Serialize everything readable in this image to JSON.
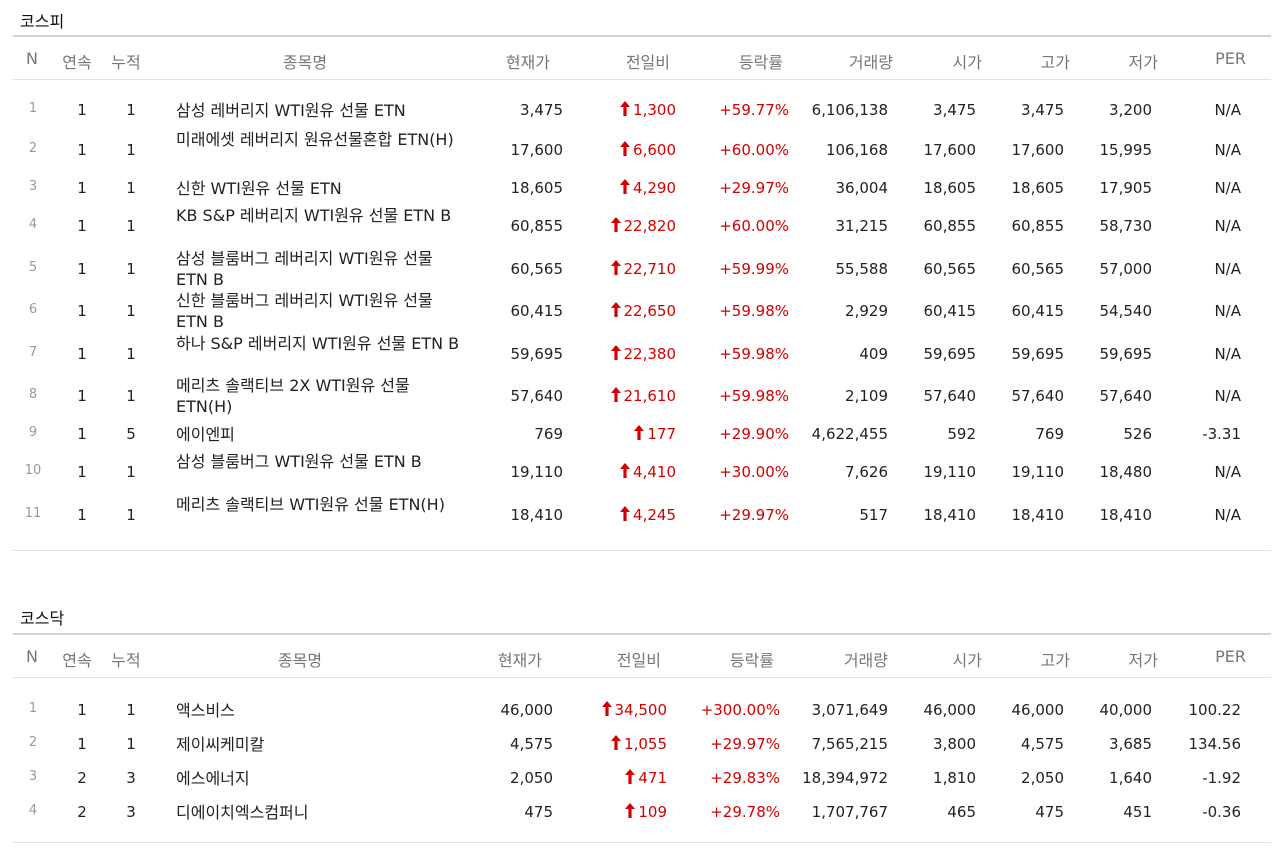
{
  "colors": {
    "up": "#d40000"
  },
  "icons": {
    "change": "red-up-arrow-icon"
  },
  "kospi": {
    "title": "코스피",
    "headers": [
      "N",
      "연속",
      "누적",
      "종목명",
      "현재가",
      "전일비",
      "등락률",
      "거래량",
      "시가",
      "고가",
      "저가",
      "PER"
    ],
    "rows": [
      {
        "n": "1",
        "streak": "1",
        "total": "1",
        "name": "삼성 레버리지 WTI원유 선물 ETN",
        "price": "3,475",
        "change": "1,300",
        "rate": "+59.77%",
        "volume": "6,106,138",
        "open": "3,475",
        "high": "3,475",
        "low": "3,200",
        "per": "N/A"
      },
      {
        "n": "2",
        "streak": "1",
        "total": "1",
        "name": "미래에셋 레버리지 원유선물혼합 ETN(H)",
        "price": "17,600",
        "change": "6,600",
        "rate": "+60.00%",
        "volume": "106,168",
        "open": "17,600",
        "high": "17,600",
        "low": "15,995",
        "per": "N/A"
      },
      {
        "n": "3",
        "streak": "1",
        "total": "1",
        "name": "신한 WTI원유 선물 ETN",
        "price": "18,605",
        "change": "4,290",
        "rate": "+29.97%",
        "volume": "36,004",
        "open": "18,605",
        "high": "18,605",
        "low": "17,905",
        "per": "N/A"
      },
      {
        "n": "4",
        "streak": "1",
        "total": "1",
        "name": "KB S&P 레버리지 WTI원유 선물 ETN B",
        "price": "60,855",
        "change": "22,820",
        "rate": "+60.00%",
        "volume": "31,215",
        "open": "60,855",
        "high": "60,855",
        "low": "58,730",
        "per": "N/A"
      },
      {
        "n": "5",
        "streak": "1",
        "total": "1",
        "name": "삼성 블룸버그 레버리지 WTI원유 선물 ETN B",
        "price": "60,565",
        "change": "22,710",
        "rate": "+59.99%",
        "volume": "55,588",
        "open": "60,565",
        "high": "60,565",
        "low": "57,000",
        "per": "N/A"
      },
      {
        "n": "6",
        "streak": "1",
        "total": "1",
        "name": "신한 블룸버그 레버리지 WTI원유 선물 ETN B",
        "price": "60,415",
        "change": "22,650",
        "rate": "+59.98%",
        "volume": "2,929",
        "open": "60,415",
        "high": "60,415",
        "low": "54,540",
        "per": "N/A"
      },
      {
        "n": "7",
        "streak": "1",
        "total": "1",
        "name": "하나 S&P 레버리지 WTI원유 선물 ETN B",
        "price": "59,695",
        "change": "22,380",
        "rate": "+59.98%",
        "volume": "409",
        "open": "59,695",
        "high": "59,695",
        "low": "59,695",
        "per": "N/A"
      },
      {
        "n": "8",
        "streak": "1",
        "total": "1",
        "name": "메리츠 솔랙티브 2X WTI원유 선물 ETN(H)",
        "price": "57,640",
        "change": "21,610",
        "rate": "+59.98%",
        "volume": "2,109",
        "open": "57,640",
        "high": "57,640",
        "low": "57,640",
        "per": "N/A"
      },
      {
        "n": "9",
        "streak": "1",
        "total": "5",
        "name": "에이엔피",
        "price": "769",
        "change": "177",
        "rate": "+29.90%",
        "volume": "4,622,455",
        "open": "592",
        "high": "769",
        "low": "526",
        "per": "-3.31"
      },
      {
        "n": "10",
        "streak": "1",
        "total": "1",
        "name": "삼성 블룸버그 WTI원유 선물 ETN B",
        "price": "19,110",
        "change": "4,410",
        "rate": "+30.00%",
        "volume": "7,626",
        "open": "19,110",
        "high": "19,110",
        "low": "18,480",
        "per": "N/A"
      },
      {
        "n": "11",
        "streak": "1",
        "total": "1",
        "name": "메리츠 솔랙티브 WTI원유 선물 ETN(H)",
        "price": "18,410",
        "change": "4,245",
        "rate": "+29.97%",
        "volume": "517",
        "open": "18,410",
        "high": "18,410",
        "low": "18,410",
        "per": "N/A"
      }
    ]
  },
  "kosdaq": {
    "title": "코스닥",
    "headers": [
      "N",
      "연속",
      "누적",
      "종목명",
      "현재가",
      "전일비",
      "등락률",
      "거래량",
      "시가",
      "고가",
      "저가",
      "PER"
    ],
    "rows": [
      {
        "n": "1",
        "streak": "1",
        "total": "1",
        "name": "액스비스",
        "price": "46,000",
        "change": "34,500",
        "rate": "+300.00%",
        "volume": "3,071,649",
        "open": "46,000",
        "high": "46,000",
        "low": "40,000",
        "per": "100.22"
      },
      {
        "n": "2",
        "streak": "1",
        "total": "1",
        "name": "제이씨케미칼",
        "price": "4,575",
        "change": "1,055",
        "rate": "+29.97%",
        "volume": "7,565,215",
        "open": "3,800",
        "high": "4,575",
        "low": "3,685",
        "per": "134.56"
      },
      {
        "n": "3",
        "streak": "2",
        "total": "3",
        "name": "에스에너지",
        "price": "2,050",
        "change": "471",
        "rate": "+29.83%",
        "volume": "18,394,972",
        "open": "1,810",
        "high": "2,050",
        "low": "1,640",
        "per": "-1.92"
      },
      {
        "n": "4",
        "streak": "2",
        "total": "3",
        "name": "디에이치엑스컴퍼니",
        "price": "475",
        "change": "109",
        "rate": "+29.78%",
        "volume": "1,707,767",
        "open": "465",
        "high": "475",
        "low": "451",
        "per": "-0.36"
      }
    ]
  }
}
